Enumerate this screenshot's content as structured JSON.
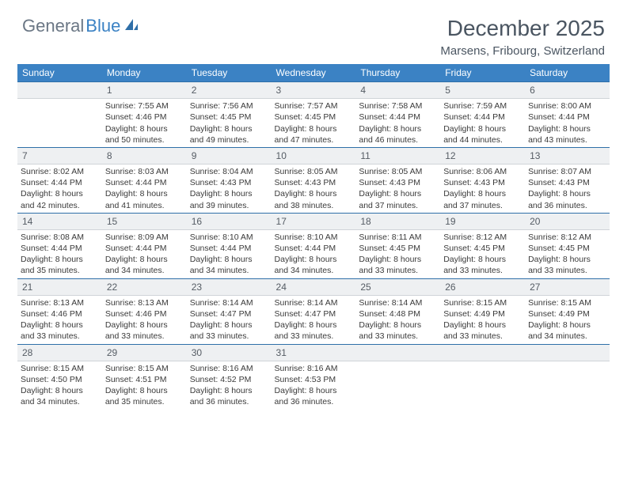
{
  "brand": {
    "part1": "General",
    "part2": "Blue"
  },
  "title": "December 2025",
  "location": "Marsens, Fribourg, Switzerland",
  "colors": {
    "header_bg": "#3b82c4",
    "header_text": "#ffffff",
    "daynum_bg": "#eef0f2",
    "daynum_border_top": "#2f6fa8",
    "text": "#3a3a3a",
    "title_text": "#4a5561",
    "logo_gray": "#6b7785",
    "logo_blue": "#3b82c4"
  },
  "weekdays": [
    "Sunday",
    "Monday",
    "Tuesday",
    "Wednesday",
    "Thursday",
    "Friday",
    "Saturday"
  ],
  "weeks": [
    [
      null,
      {
        "n": "1",
        "sr": "7:55 AM",
        "ss": "4:46 PM",
        "dl": "8 hours and 50 minutes."
      },
      {
        "n": "2",
        "sr": "7:56 AM",
        "ss": "4:45 PM",
        "dl": "8 hours and 49 minutes."
      },
      {
        "n": "3",
        "sr": "7:57 AM",
        "ss": "4:45 PM",
        "dl": "8 hours and 47 minutes."
      },
      {
        "n": "4",
        "sr": "7:58 AM",
        "ss": "4:44 PM",
        "dl": "8 hours and 46 minutes."
      },
      {
        "n": "5",
        "sr": "7:59 AM",
        "ss": "4:44 PM",
        "dl": "8 hours and 44 minutes."
      },
      {
        "n": "6",
        "sr": "8:00 AM",
        "ss": "4:44 PM",
        "dl": "8 hours and 43 minutes."
      }
    ],
    [
      {
        "n": "7",
        "sr": "8:02 AM",
        "ss": "4:44 PM",
        "dl": "8 hours and 42 minutes."
      },
      {
        "n": "8",
        "sr": "8:03 AM",
        "ss": "4:44 PM",
        "dl": "8 hours and 41 minutes."
      },
      {
        "n": "9",
        "sr": "8:04 AM",
        "ss": "4:43 PM",
        "dl": "8 hours and 39 minutes."
      },
      {
        "n": "10",
        "sr": "8:05 AM",
        "ss": "4:43 PM",
        "dl": "8 hours and 38 minutes."
      },
      {
        "n": "11",
        "sr": "8:05 AM",
        "ss": "4:43 PM",
        "dl": "8 hours and 37 minutes."
      },
      {
        "n": "12",
        "sr": "8:06 AM",
        "ss": "4:43 PM",
        "dl": "8 hours and 37 minutes."
      },
      {
        "n": "13",
        "sr": "8:07 AM",
        "ss": "4:43 PM",
        "dl": "8 hours and 36 minutes."
      }
    ],
    [
      {
        "n": "14",
        "sr": "8:08 AM",
        "ss": "4:44 PM",
        "dl": "8 hours and 35 minutes."
      },
      {
        "n": "15",
        "sr": "8:09 AM",
        "ss": "4:44 PM",
        "dl": "8 hours and 34 minutes."
      },
      {
        "n": "16",
        "sr": "8:10 AM",
        "ss": "4:44 PM",
        "dl": "8 hours and 34 minutes."
      },
      {
        "n": "17",
        "sr": "8:10 AM",
        "ss": "4:44 PM",
        "dl": "8 hours and 34 minutes."
      },
      {
        "n": "18",
        "sr": "8:11 AM",
        "ss": "4:45 PM",
        "dl": "8 hours and 33 minutes."
      },
      {
        "n": "19",
        "sr": "8:12 AM",
        "ss": "4:45 PM",
        "dl": "8 hours and 33 minutes."
      },
      {
        "n": "20",
        "sr": "8:12 AM",
        "ss": "4:45 PM",
        "dl": "8 hours and 33 minutes."
      }
    ],
    [
      {
        "n": "21",
        "sr": "8:13 AM",
        "ss": "4:46 PM",
        "dl": "8 hours and 33 minutes."
      },
      {
        "n": "22",
        "sr": "8:13 AM",
        "ss": "4:46 PM",
        "dl": "8 hours and 33 minutes."
      },
      {
        "n": "23",
        "sr": "8:14 AM",
        "ss": "4:47 PM",
        "dl": "8 hours and 33 minutes."
      },
      {
        "n": "24",
        "sr": "8:14 AM",
        "ss": "4:47 PM",
        "dl": "8 hours and 33 minutes."
      },
      {
        "n": "25",
        "sr": "8:14 AM",
        "ss": "4:48 PM",
        "dl": "8 hours and 33 minutes."
      },
      {
        "n": "26",
        "sr": "8:15 AM",
        "ss": "4:49 PM",
        "dl": "8 hours and 33 minutes."
      },
      {
        "n": "27",
        "sr": "8:15 AM",
        "ss": "4:49 PM",
        "dl": "8 hours and 34 minutes."
      }
    ],
    [
      {
        "n": "28",
        "sr": "8:15 AM",
        "ss": "4:50 PM",
        "dl": "8 hours and 34 minutes."
      },
      {
        "n": "29",
        "sr": "8:15 AM",
        "ss": "4:51 PM",
        "dl": "8 hours and 35 minutes."
      },
      {
        "n": "30",
        "sr": "8:16 AM",
        "ss": "4:52 PM",
        "dl": "8 hours and 36 minutes."
      },
      {
        "n": "31",
        "sr": "8:16 AM",
        "ss": "4:53 PM",
        "dl": "8 hours and 36 minutes."
      },
      null,
      null,
      null
    ]
  ],
  "labels": {
    "sunrise": "Sunrise:",
    "sunset": "Sunset:",
    "daylight": "Daylight:"
  }
}
